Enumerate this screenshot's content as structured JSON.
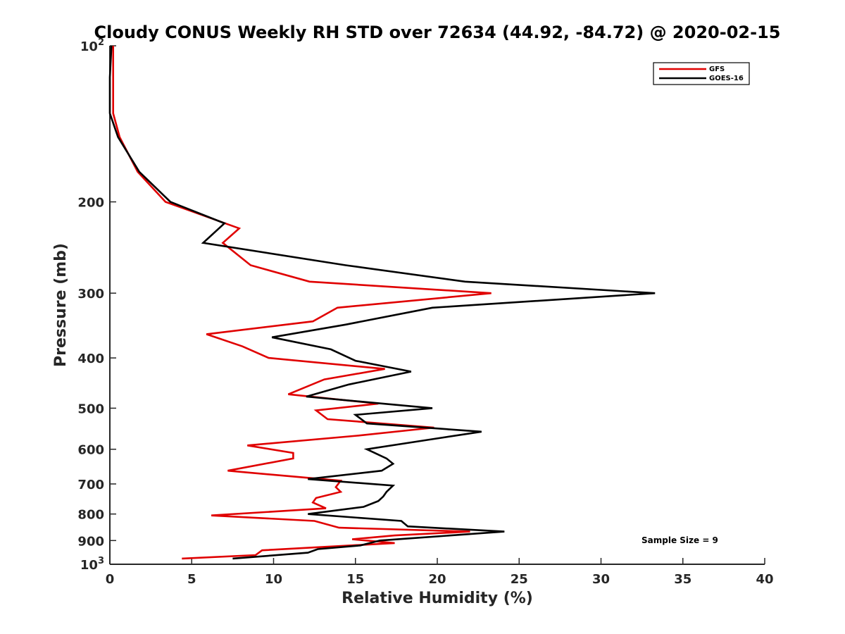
{
  "chart_data": {
    "type": "line",
    "title": "Cloudy CONUS Weekly RH STD over 72634 (44.92, -84.72) @ 2020-02-15",
    "xlabel": "Relative Humidity (%)",
    "ylabel": "Pressure (mb)",
    "xlim": [
      0,
      40
    ],
    "ylim": [
      100,
      1000
    ],
    "y_scale": "log",
    "y_reversed": true,
    "grid": false,
    "legend_position": "top-right",
    "x_ticks": [
      "0",
      "5",
      "10",
      "15",
      "20",
      "25",
      "30",
      "35",
      "40"
    ],
    "y_ticks": [
      {
        "value": 100,
        "base": "10",
        "exp": "2"
      },
      {
        "value": 200,
        "label": "200"
      },
      {
        "value": 300,
        "label": "300"
      },
      {
        "value": 400,
        "label": "400"
      },
      {
        "value": 500,
        "label": "500"
      },
      {
        "value": 600,
        "label": "600"
      },
      {
        "value": 700,
        "label": "700"
      },
      {
        "value": 800,
        "label": "800"
      },
      {
        "value": 900,
        "label": "900"
      },
      {
        "value": 1000,
        "base": "10",
        "exp": "3"
      }
    ],
    "series": [
      {
        "name": "GFS",
        "color": "#e00000",
        "points": [
          [
            0.2,
            100
          ],
          [
            0.2,
            115
          ],
          [
            0.2,
            135
          ],
          [
            0.6,
            150
          ],
          [
            1.7,
            175
          ],
          [
            3.4,
            200
          ],
          [
            7.9,
            225
          ],
          [
            6.9,
            240
          ],
          [
            8.6,
            265
          ],
          [
            12.2,
            285
          ],
          [
            23.3,
            300
          ],
          [
            13.9,
            320
          ],
          [
            12.4,
            340
          ],
          [
            5.9,
            360
          ],
          [
            8.1,
            380
          ],
          [
            9.7,
            400
          ],
          [
            16.8,
            420
          ],
          [
            13.1,
            440
          ],
          [
            10.9,
            470
          ],
          [
            16.4,
            490
          ],
          [
            12.6,
            505
          ],
          [
            13.3,
            525
          ],
          [
            19.8,
            545
          ],
          [
            15.1,
            565
          ],
          [
            8.4,
            590
          ],
          [
            11.2,
            610
          ],
          [
            11.2,
            625
          ],
          [
            7.2,
            660
          ],
          [
            14.1,
            690
          ],
          [
            13.8,
            710
          ],
          [
            14.1,
            725
          ],
          [
            12.6,
            745
          ],
          [
            12.4,
            760
          ],
          [
            13.2,
            780
          ],
          [
            6.2,
            805
          ],
          [
            12.5,
            825
          ],
          [
            14.0,
            850
          ],
          [
            22.0,
            865
          ],
          [
            17.4,
            880
          ],
          [
            14.8,
            895
          ],
          [
            17.4,
            910
          ],
          [
            9.3,
            940
          ],
          [
            8.9,
            960
          ],
          [
            4.4,
            975
          ]
        ]
      },
      {
        "name": "GOES-16",
        "color": "#000000",
        "points": [
          [
            0.1,
            100
          ],
          [
            0.0,
            115
          ],
          [
            0.0,
            135
          ],
          [
            0.5,
            150
          ],
          [
            1.8,
            175
          ],
          [
            3.7,
            200
          ],
          [
            7.0,
            220
          ],
          [
            5.7,
            240
          ],
          [
            14.4,
            265
          ],
          [
            21.7,
            285
          ],
          [
            33.3,
            300
          ],
          [
            19.7,
            320
          ],
          [
            14.4,
            345
          ],
          [
            9.9,
            365
          ],
          [
            13.5,
            385
          ],
          [
            15.0,
            405
          ],
          [
            18.4,
            425
          ],
          [
            14.6,
            450
          ],
          [
            12.0,
            475
          ],
          [
            19.7,
            500
          ],
          [
            15.0,
            515
          ],
          [
            15.7,
            535
          ],
          [
            22.7,
            555
          ],
          [
            19.5,
            575
          ],
          [
            15.7,
            600
          ],
          [
            16.9,
            625
          ],
          [
            17.3,
            640
          ],
          [
            16.6,
            660
          ],
          [
            12.1,
            685
          ],
          [
            17.3,
            705
          ],
          [
            16.9,
            725
          ],
          [
            16.7,
            740
          ],
          [
            16.4,
            755
          ],
          [
            15.5,
            775
          ],
          [
            12.1,
            800
          ],
          [
            17.8,
            825
          ],
          [
            18.2,
            845
          ],
          [
            24.1,
            865
          ],
          [
            16.5,
            900
          ],
          [
            15.3,
            920
          ],
          [
            12.7,
            935
          ],
          [
            12.1,
            950
          ],
          [
            7.5,
            975
          ]
        ]
      }
    ],
    "annotation": "Sample Size = 9"
  }
}
